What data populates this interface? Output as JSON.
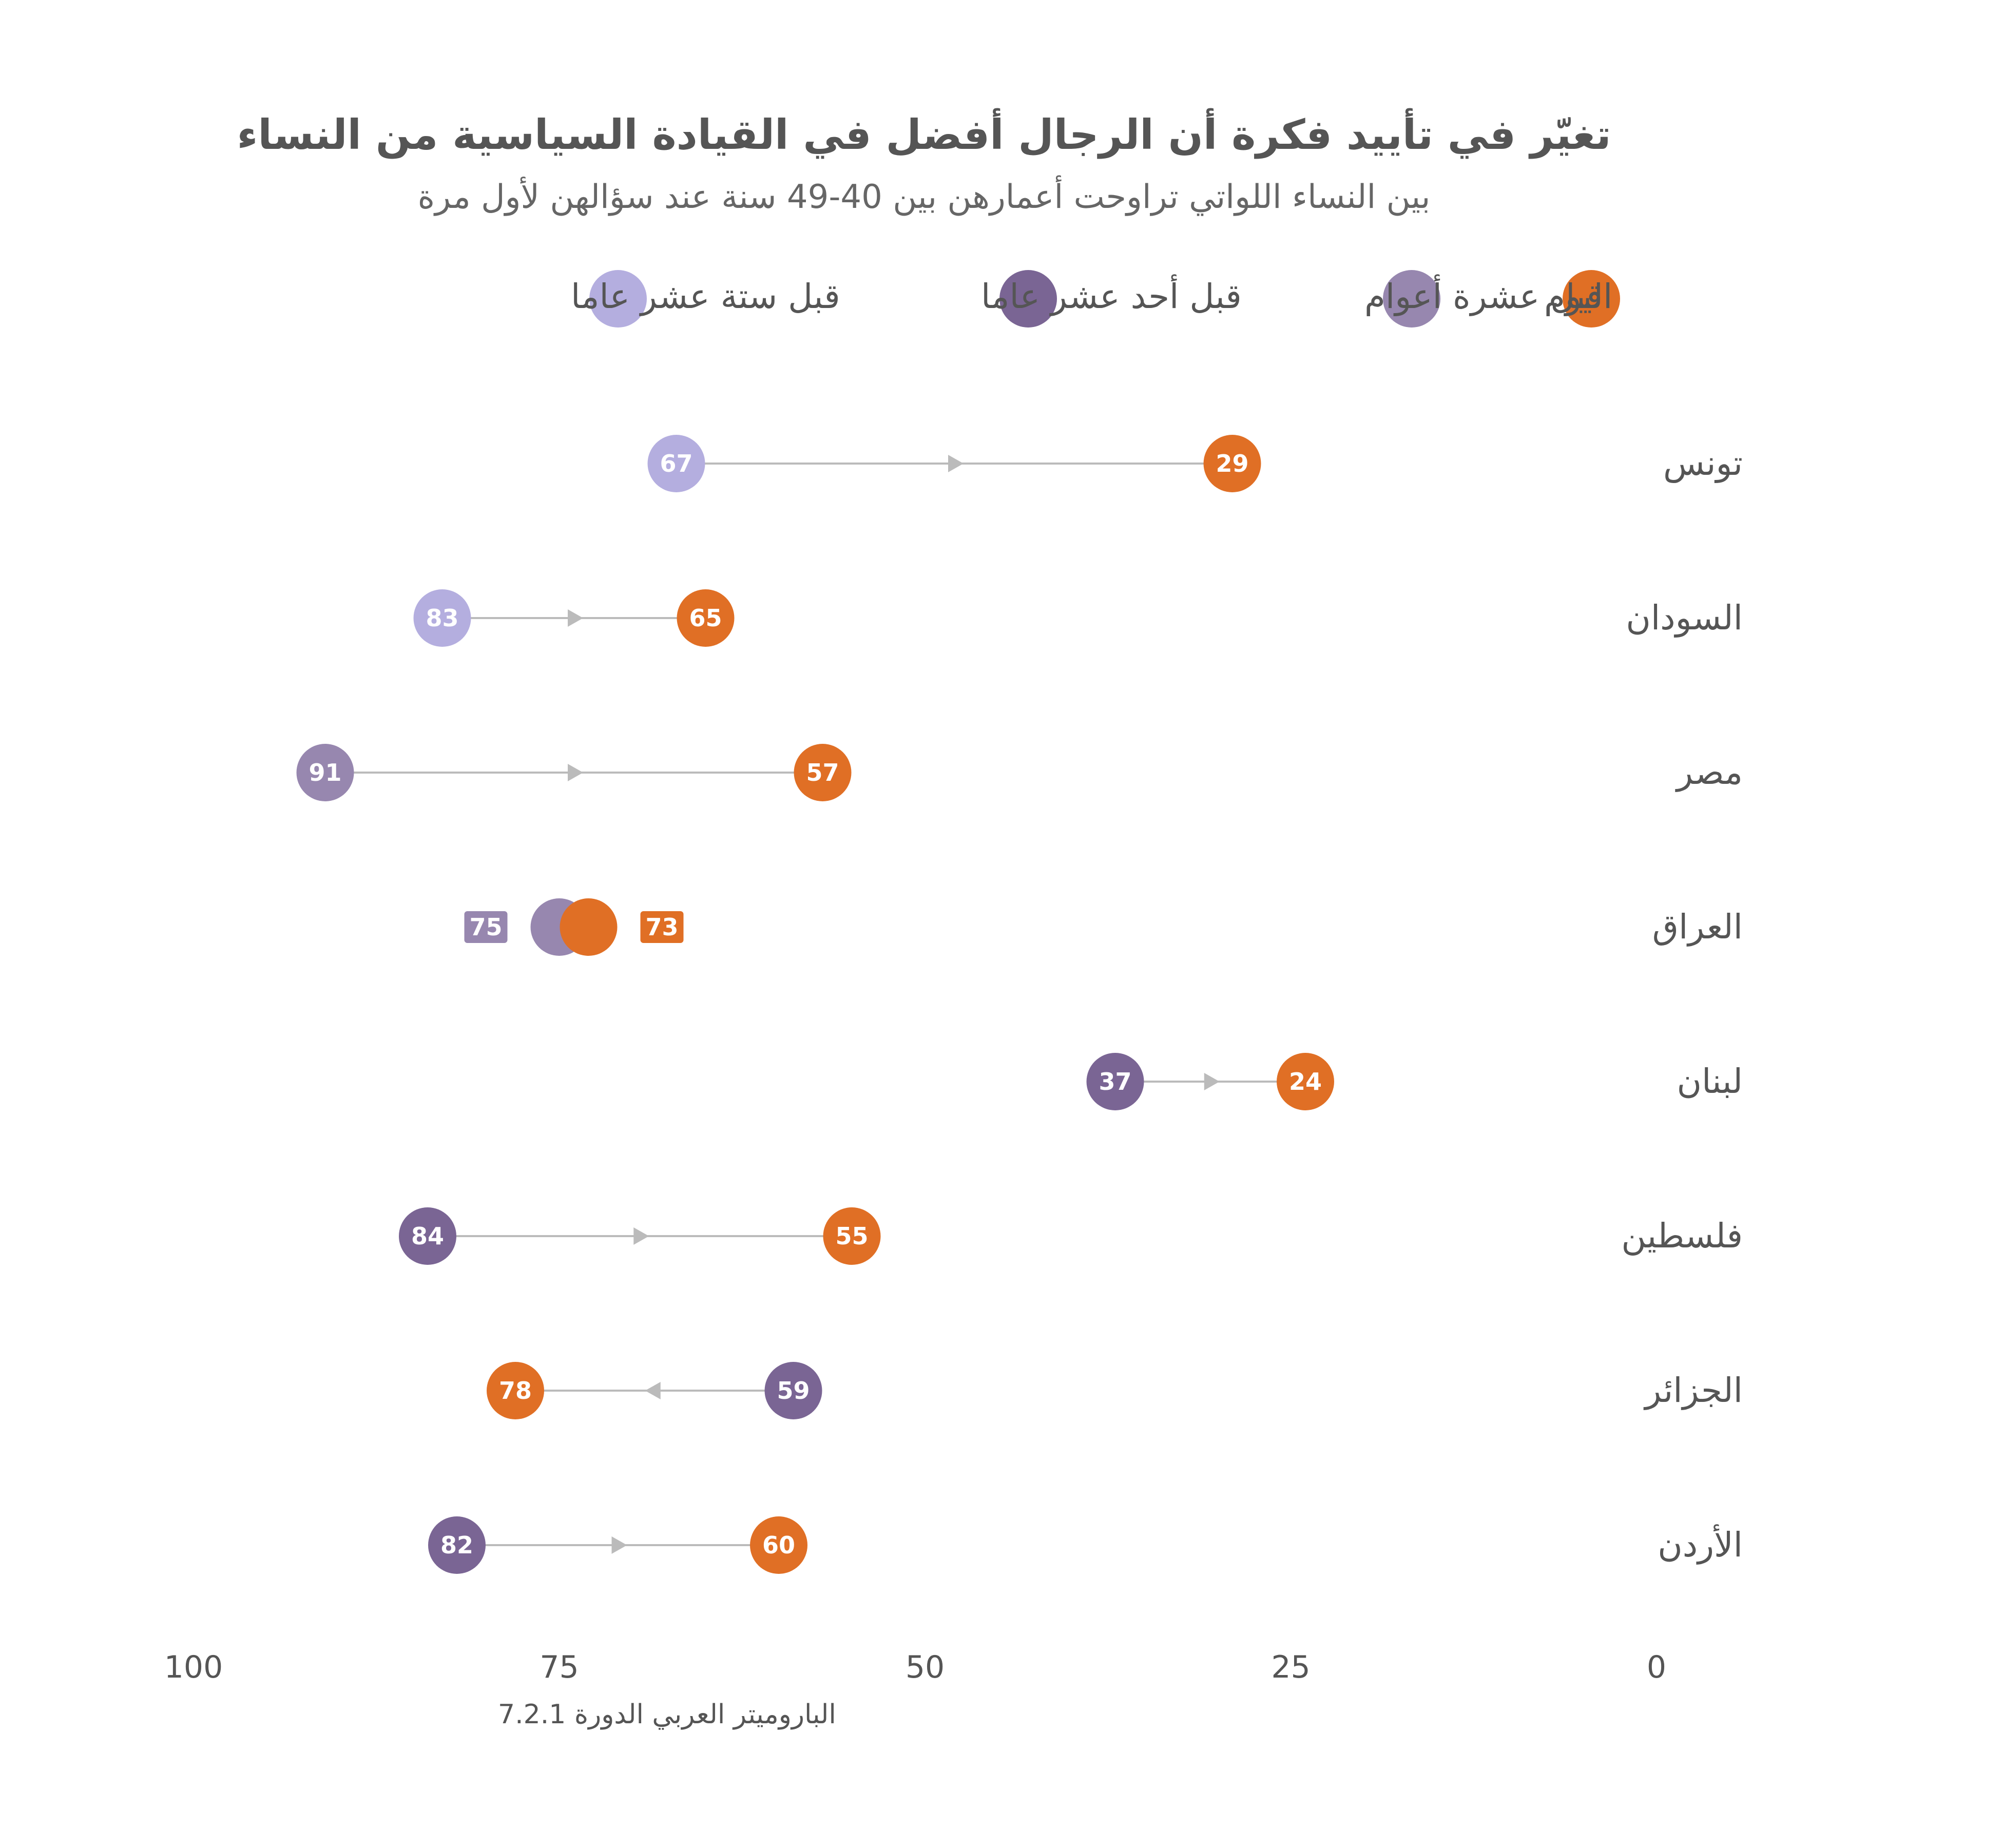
{
  "chart_data": {
    "type": "dumbbell",
    "title": "تغيّر في تأييد فكرة أن الرجال أفضل في القيادة السياسية من النساء",
    "subtitle": "بين النساء اللواتي تراوحت أعمارهن بين 40-49 سنة عند سؤالهن لأول مرة",
    "source": "الباروميتر العربي الدورة 7.2.1",
    "xlim": [
      100,
      0
    ],
    "x_ticks": [
      "100",
      "75",
      "50",
      "25",
      "0"
    ],
    "x_tick_values": [
      100,
      75,
      50,
      25,
      0
    ],
    "legend": [
      {
        "key": "today",
        "label": "اليوم",
        "color": "#E06F25"
      },
      {
        "key": "ago10",
        "label": "قبل عشرة أعوام",
        "color": "#9787AF"
      },
      {
        "key": "ago11",
        "label": "قبل أحد عشر عاما",
        "color": "#7A6594"
      },
      {
        "key": "ago16",
        "label": "قبل ستة عشر عاما",
        "color": "#B4AEDF"
      }
    ],
    "rows": [
      {
        "country": "تونس",
        "start": {
          "value": 67,
          "series": "ago16"
        },
        "end": {
          "value": 29,
          "series": "today"
        }
      },
      {
        "country": "السودان",
        "start": {
          "value": 83,
          "series": "ago16"
        },
        "end": {
          "value": 65,
          "series": "today"
        }
      },
      {
        "country": "مصر",
        "start": {
          "value": 91,
          "series": "ago10"
        },
        "end": {
          "value": 57,
          "series": "today"
        }
      },
      {
        "country": "العراق",
        "start": {
          "value": 75,
          "series": "ago10"
        },
        "end": {
          "value": 73,
          "series": "today"
        }
      },
      {
        "country": "لبنان",
        "start": {
          "value": 37,
          "series": "ago11"
        },
        "end": {
          "value": 24,
          "series": "today"
        }
      },
      {
        "country": "فلسطين",
        "start": {
          "value": 84,
          "series": "ago11"
        },
        "end": {
          "value": 55,
          "series": "today"
        }
      },
      {
        "country": "الجزائر",
        "start": {
          "value": 59,
          "series": "ago11"
        },
        "end": {
          "value": 78,
          "series": "today"
        }
      },
      {
        "country": "الأردن",
        "start": {
          "value": 82,
          "series": "ago11"
        },
        "end": {
          "value": 60,
          "series": "today"
        }
      }
    ]
  }
}
